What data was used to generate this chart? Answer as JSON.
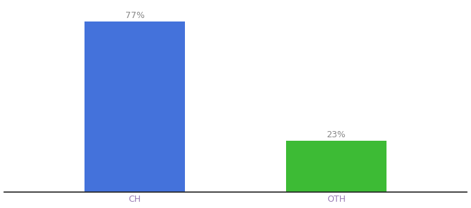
{
  "categories": [
    "CH",
    "OTH"
  ],
  "values": [
    77,
    23
  ],
  "bar_colors": [
    "#4472db",
    "#3dbb35"
  ],
  "bar_labels": [
    "77%",
    "23%"
  ],
  "ylim": [
    0,
    85
  ],
  "background_color": "#ffffff",
  "label_color": "#888888",
  "label_fontsize": 9,
  "tick_fontsize": 9,
  "tick_color": "#9b7fb6",
  "bar_width": 0.5,
  "figsize": [
    6.8,
    3.0
  ],
  "dpi": 100
}
